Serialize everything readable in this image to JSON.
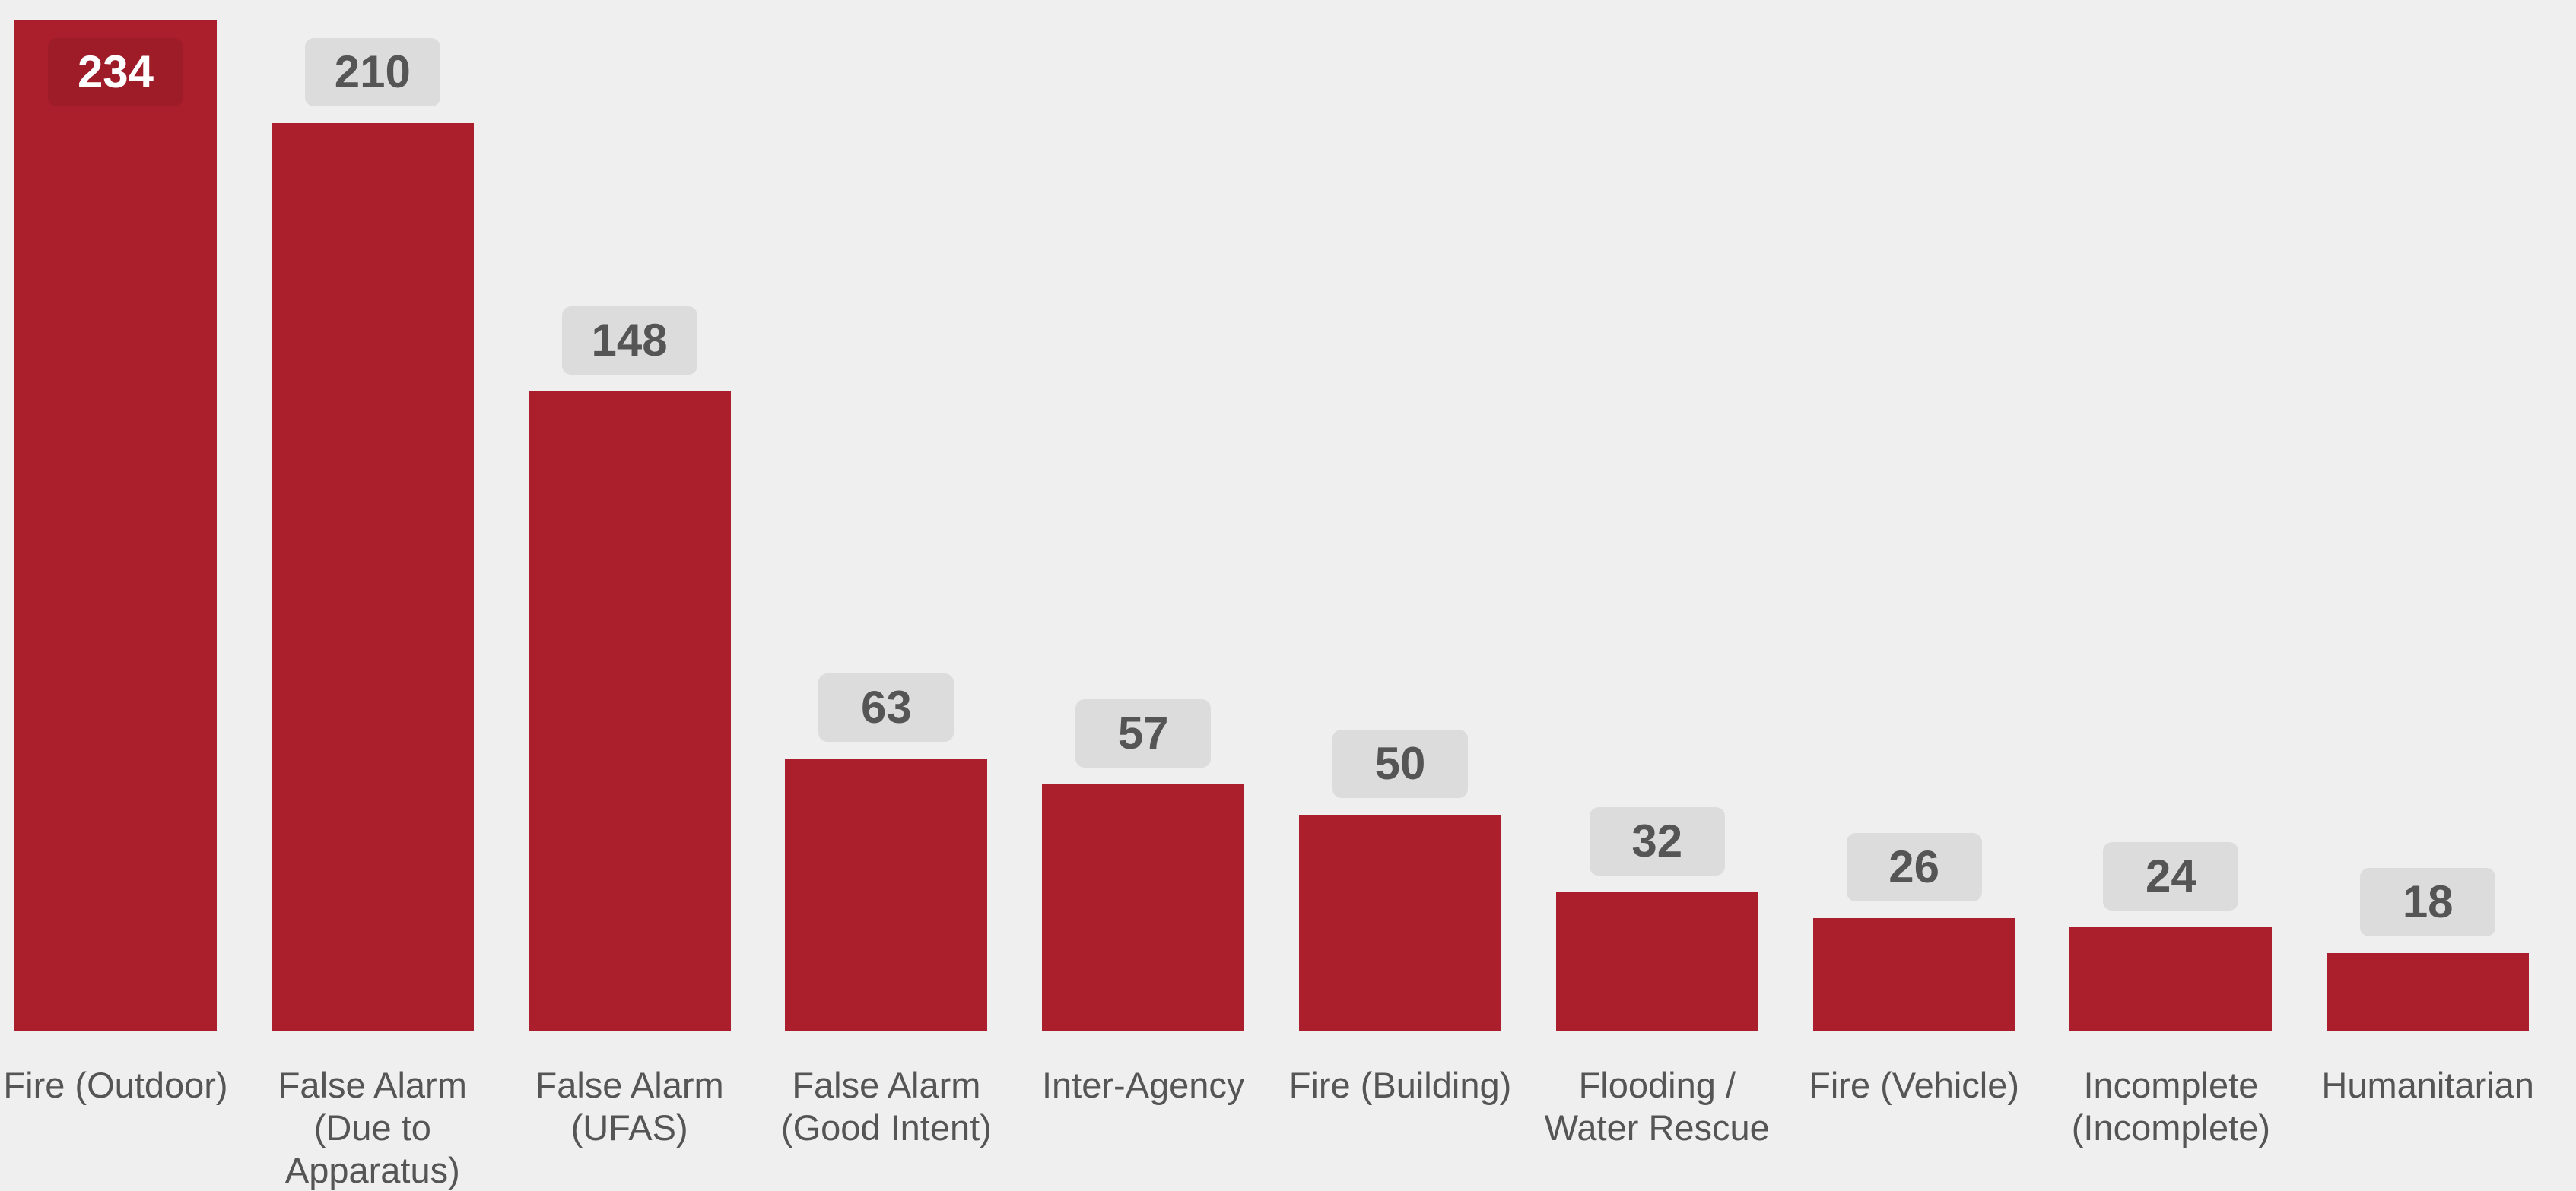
{
  "chart_data": {
    "type": "bar",
    "categories": [
      "Fire (Outdoor)",
      "False Alarm (Due to Apparatus)",
      "False Alarm (UFAS)",
      "False Alarm (Good Intent)",
      "Inter-Agency",
      "Fire (Building)",
      "Flooding / Water Rescue",
      "Fire (Vehicle)",
      "Incomplete (Incomplete)",
      "Humanitarian"
    ],
    "values": [
      234,
      210,
      148,
      63,
      57,
      50,
      32,
      26,
      24,
      18
    ],
    "color": "#ab1f2d"
  }
}
